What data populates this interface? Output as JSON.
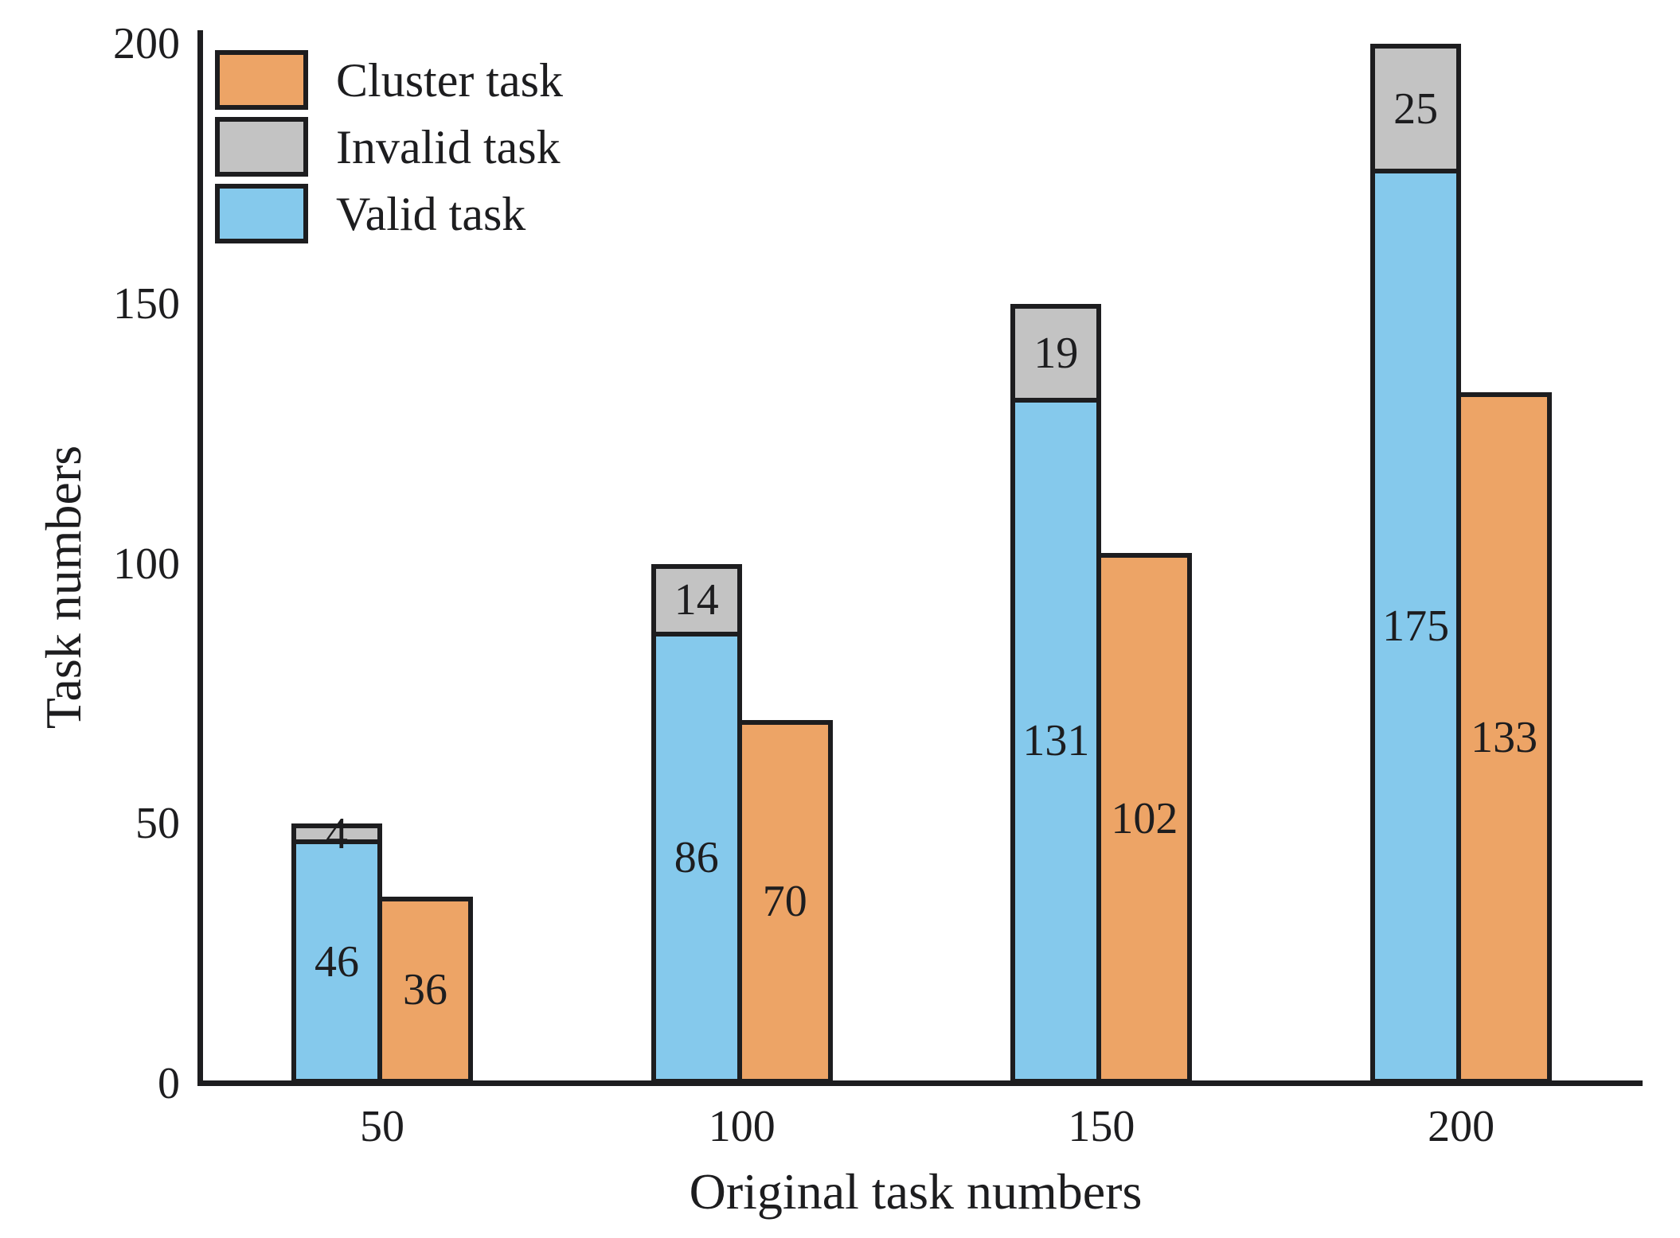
{
  "figure": {
    "background": "#ffffff",
    "text_color": "#1d1d1f"
  },
  "axes": {
    "y": {
      "label": "Task numbers",
      "ticks": [
        "0",
        "50",
        "100",
        "150",
        "200"
      ],
      "tick_values": [
        0,
        50,
        100,
        150,
        200
      ],
      "range": [
        0,
        200
      ]
    },
    "x": {
      "label": "Original task numbers",
      "ticks": [
        "50",
        "100",
        "150",
        "200"
      ]
    }
  },
  "legend": [
    {
      "label": "Cluster task",
      "series": "cluster",
      "color": "#EDA466"
    },
    {
      "label": "Invalid task",
      "series": "invalid",
      "color": "#C3C3C3"
    },
    {
      "label": "Valid task",
      "series": "valid",
      "color": "#85C9EC"
    }
  ],
  "chart_data": {
    "type": "bar",
    "subtype": "stacked-plus-grouped",
    "title": "",
    "xlabel": "Original task numbers",
    "ylabel": "Task numbers",
    "categories": [
      "50",
      "100",
      "150",
      "200"
    ],
    "ylim": [
      0,
      200
    ],
    "grid": false,
    "legend_position": "upper-left",
    "bar_value_labels_shown": true,
    "series": [
      {
        "name": "Valid task",
        "color": "#85C9EC",
        "placement": "left-stack-bottom",
        "values": [
          46,
          86,
          131,
          175
        ]
      },
      {
        "name": "Invalid task",
        "color": "#C3C3C3",
        "placement": "left-stack-top",
        "values": [
          4,
          14,
          19,
          25
        ]
      },
      {
        "name": "Cluster task",
        "color": "#EDA466",
        "placement": "right-bar",
        "values": [
          36,
          70,
          102,
          133
        ]
      }
    ],
    "stack_totals": [
      50,
      100,
      150,
      200
    ]
  }
}
